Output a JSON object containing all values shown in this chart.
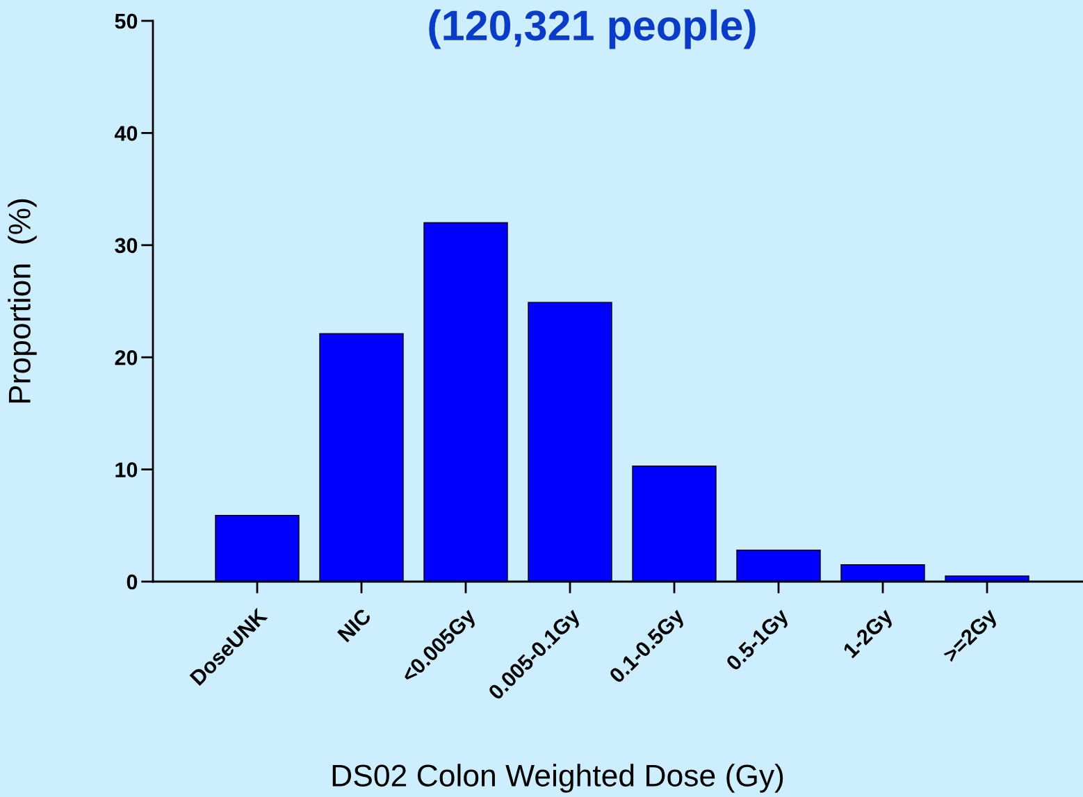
{
  "chart_data": {
    "type": "bar",
    "title": "(120,321 people)",
    "xlabel": "DS02 Colon Weighted Dose (Gy)",
    "ylabel": "Proportion  (%)",
    "categories": [
      "DoseUNK",
      "NIC",
      "<0.005Gy",
      "0.005-0.1Gy",
      "0.1-0.5Gy",
      "0.5-1Gy",
      "1-2Gy",
      ">=2Gy"
    ],
    "values": [
      5.9,
      22.1,
      32.0,
      24.9,
      10.3,
      2.8,
      1.5,
      0.5
    ],
    "color": "#0000ff",
    "ylim": [
      0,
      50
    ],
    "yticks": [
      0,
      10,
      20,
      30,
      40,
      50
    ],
    "grid": false,
    "legend": false
  }
}
